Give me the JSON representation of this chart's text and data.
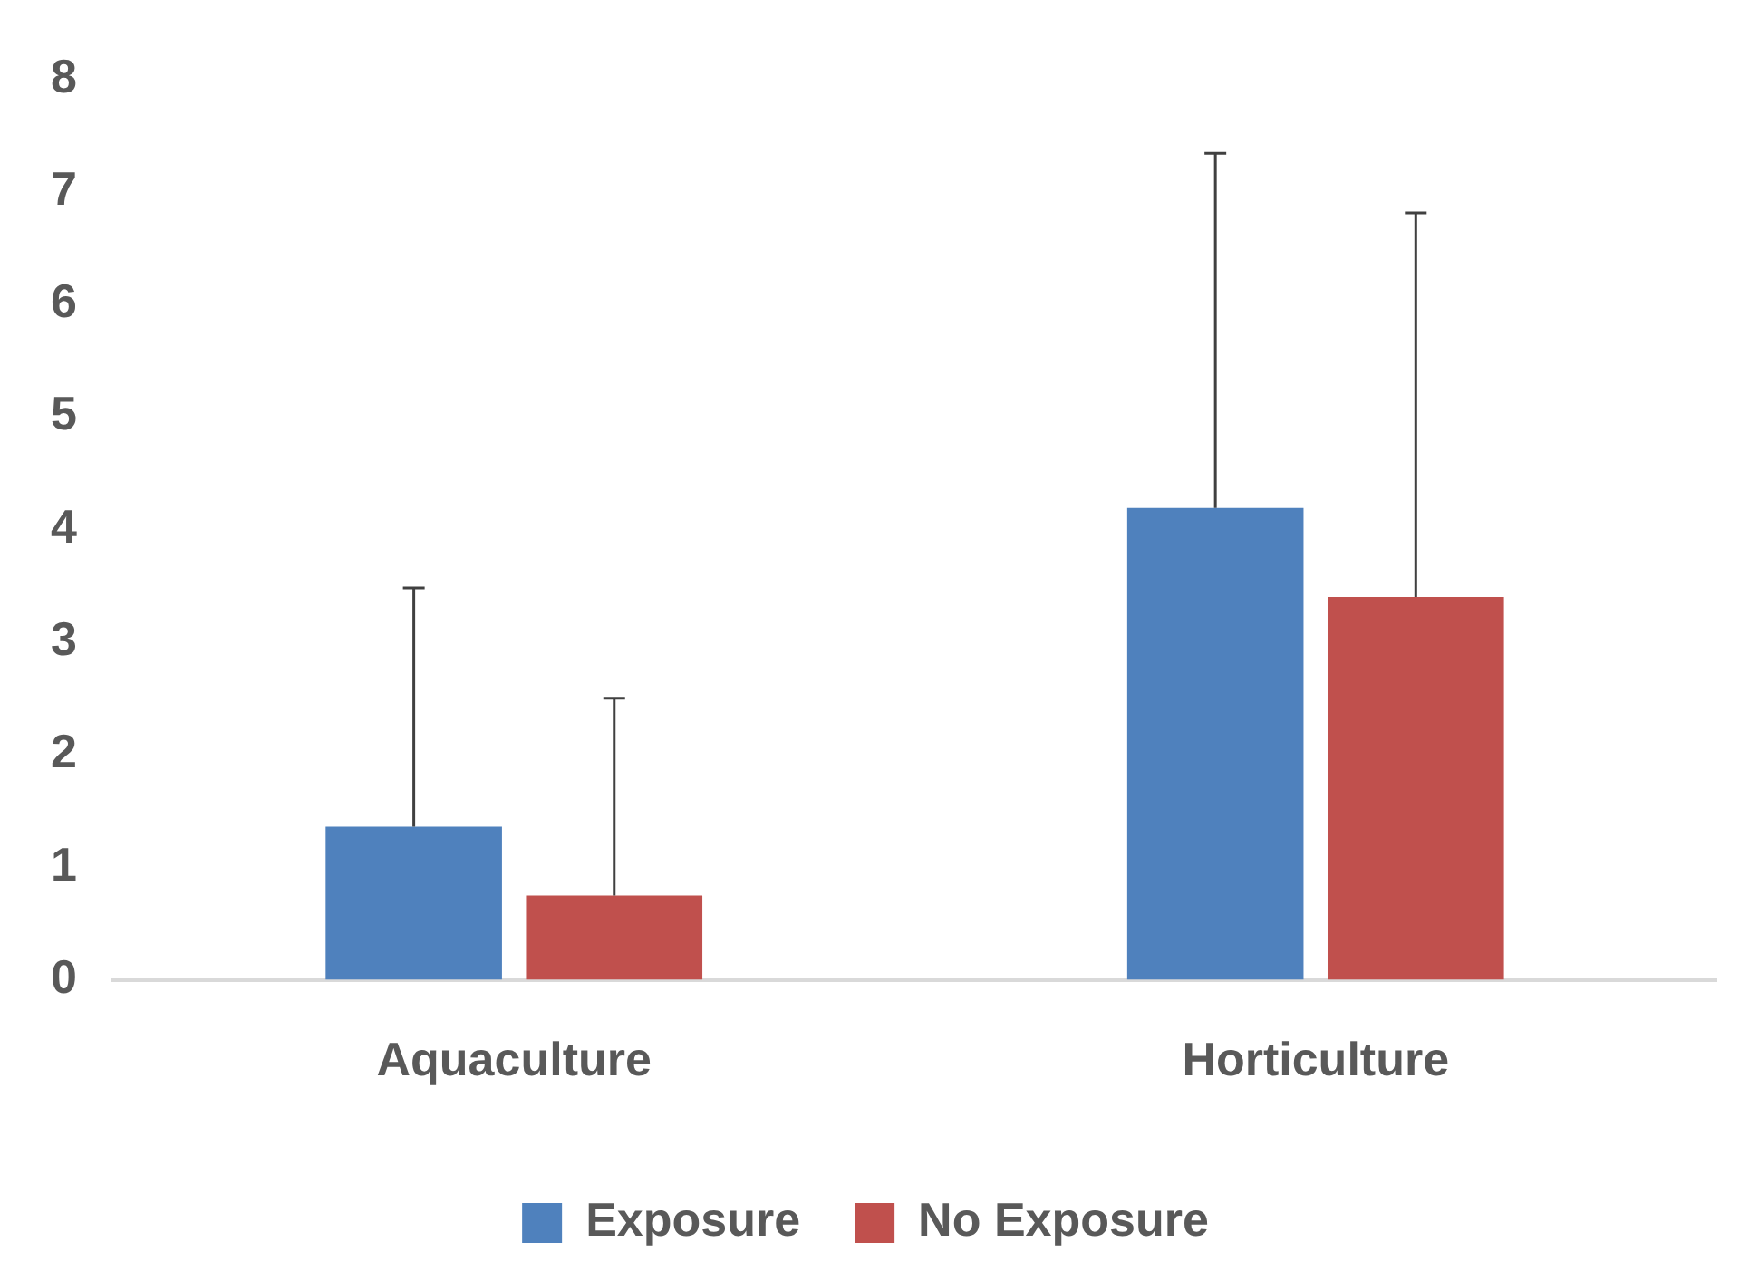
{
  "chart_data": {
    "type": "bar",
    "categories": [
      "Aquaculture",
      "Horticulture"
    ],
    "series": [
      {
        "name": "Exposure",
        "color": "#4f81bd",
        "values": [
          1.36,
          4.19
        ],
        "errors": [
          [
            1.36,
            3.48
          ],
          [
            4.19,
            7.34
          ]
        ]
      },
      {
        "name": "No Exposure",
        "color": "#c0504d",
        "values": [
          0.75,
          3.4
        ],
        "errors": [
          [
            0.75,
            2.5
          ],
          [
            3.4,
            6.81
          ]
        ]
      }
    ],
    "ylim": [
      0,
      8
    ],
    "yticks": [
      0,
      1,
      2,
      3,
      4,
      5,
      6,
      7,
      8
    ],
    "grid": false,
    "legend": "bottom"
  }
}
